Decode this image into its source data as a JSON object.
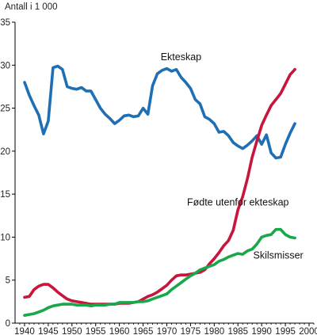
{
  "chart_data": {
    "type": "line",
    "ylabel": "Antall i 1 000",
    "xlim": [
      1938,
      2001
    ],
    "ylim": [
      0,
      35
    ],
    "x_ticks": [
      1940,
      1945,
      1950,
      1955,
      1960,
      1965,
      1970,
      1975,
      1980,
      1985,
      1990,
      1995,
      2000
    ],
    "x_tick_labels": [
      "1940",
      "1945",
      "1950",
      "1955",
      "1960",
      "1965",
      "1970",
      "1975",
      "1980",
      "1985",
      "1990",
      "1995",
      "2000"
    ],
    "y_ticks": [
      0,
      5,
      10,
      15,
      20,
      25,
      30,
      35
    ],
    "y_tick_labels": [
      "0",
      "5",
      "10",
      "15",
      "20",
      "25",
      "30",
      "35"
    ],
    "grid": false,
    "series": [
      {
        "name": "Ekteskap",
        "color": "#1f6fb5",
        "x": [
          1940,
          1941,
          1942,
          1943,
          1944,
          1945,
          1946,
          1947,
          1948,
          1949,
          1950,
          1951,
          1952,
          1953,
          1954,
          1955,
          1956,
          1957,
          1958,
          1959,
          1960,
          1961,
          1962,
          1963,
          1964,
          1965,
          1966,
          1967,
          1968,
          1969,
          1970,
          1971,
          1972,
          1973,
          1974,
          1975,
          1976,
          1977,
          1978,
          1979,
          1980,
          1981,
          1982,
          1983,
          1984,
          1985,
          1986,
          1987,
          1988,
          1989,
          1990,
          1991,
          1992,
          1993,
          1994,
          1995,
          1996,
          1997
        ],
        "values": [
          28.0,
          26.5,
          25.3,
          24.2,
          22.0,
          23.5,
          29.7,
          29.9,
          29.5,
          27.5,
          27.3,
          27.2,
          27.4,
          27.0,
          27.0,
          26.0,
          25.0,
          24.3,
          23.8,
          23.2,
          23.6,
          24.1,
          24.2,
          24.0,
          24.1,
          25.0,
          24.3,
          27.6,
          29.0,
          29.4,
          29.6,
          29.3,
          29.5,
          28.6,
          28.0,
          27.3,
          26.0,
          25.5,
          24.0,
          23.7,
          23.2,
          22.2,
          22.3,
          21.8,
          21.0,
          20.6,
          20.3,
          20.7,
          21.2,
          21.8,
          20.8,
          21.9,
          19.8,
          19.2,
          19.3,
          20.8,
          22.1,
          23.2
        ]
      },
      {
        "name": "Fødte utenfor ekteskap",
        "color": "#c8153c",
        "x": [
          1940,
          1941,
          1942,
          1943,
          1944,
          1945,
          1946,
          1947,
          1948,
          1949,
          1950,
          1951,
          1952,
          1953,
          1954,
          1955,
          1956,
          1957,
          1958,
          1959,
          1960,
          1961,
          1962,
          1963,
          1964,
          1965,
          1966,
          1967,
          1968,
          1969,
          1970,
          1971,
          1972,
          1973,
          1974,
          1975,
          1976,
          1977,
          1978,
          1979,
          1980,
          1981,
          1982,
          1983,
          1984,
          1985,
          1986,
          1987,
          1988,
          1989,
          1990,
          1991,
          1992,
          1993,
          1994,
          1995,
          1996,
          1997
        ],
        "values": [
          3.0,
          3.1,
          3.9,
          4.3,
          4.5,
          4.5,
          4.1,
          3.6,
          3.2,
          2.8,
          2.6,
          2.5,
          2.4,
          2.3,
          2.2,
          2.2,
          2.2,
          2.2,
          2.2,
          2.2,
          2.3,
          2.3,
          2.3,
          2.4,
          2.5,
          2.8,
          3.1,
          3.3,
          3.6,
          4.0,
          4.4,
          5.0,
          5.5,
          5.6,
          5.6,
          5.7,
          5.8,
          5.9,
          6.2,
          6.9,
          7.5,
          8.2,
          9.0,
          9.6,
          10.8,
          13.2,
          14.7,
          16.8,
          19.3,
          21.2,
          23.0,
          24.2,
          25.3,
          26.0,
          26.7,
          27.8,
          28.9,
          29.5
        ]
      },
      {
        "name": "Skilsmisser",
        "color": "#18a84a",
        "x": [
          1940,
          1941,
          1942,
          1943,
          1944,
          1945,
          1946,
          1947,
          1948,
          1949,
          1950,
          1951,
          1952,
          1953,
          1954,
          1955,
          1956,
          1957,
          1958,
          1959,
          1960,
          1961,
          1962,
          1963,
          1964,
          1965,
          1966,
          1967,
          1968,
          1969,
          1970,
          1971,
          1972,
          1973,
          1974,
          1975,
          1976,
          1977,
          1978,
          1979,
          1980,
          1981,
          1982,
          1983,
          1984,
          1985,
          1986,
          1987,
          1988,
          1989,
          1990,
          1991,
          1992,
          1993,
          1994,
          1995,
          1996,
          1997
        ],
        "values": [
          0.9,
          1.0,
          1.1,
          1.3,
          1.5,
          1.8,
          2.0,
          2.1,
          2.2,
          2.2,
          2.2,
          2.1,
          2.1,
          2.1,
          2.0,
          2.1,
          2.1,
          2.1,
          2.2,
          2.2,
          2.4,
          2.4,
          2.4,
          2.4,
          2.5,
          2.5,
          2.6,
          2.8,
          3.0,
          3.2,
          3.4,
          3.9,
          4.3,
          4.7,
          5.1,
          5.5,
          5.8,
          6.2,
          6.4,
          6.6,
          6.8,
          7.2,
          7.4,
          7.7,
          7.9,
          8.1,
          8.0,
          8.4,
          8.6,
          9.2,
          10.0,
          10.2,
          10.3,
          10.9,
          10.9,
          10.3,
          10.0,
          9.9
        ]
      }
    ],
    "annotations": [
      {
        "text": "Ekteskap",
        "x": 1973,
        "y": 30.6
      },
      {
        "text": "Fødte utenfor ekteskap",
        "x": 1985,
        "y": 13.7
      },
      {
        "text": "Skilsmisser",
        "x": 1993.5,
        "y": 7.5
      }
    ]
  }
}
